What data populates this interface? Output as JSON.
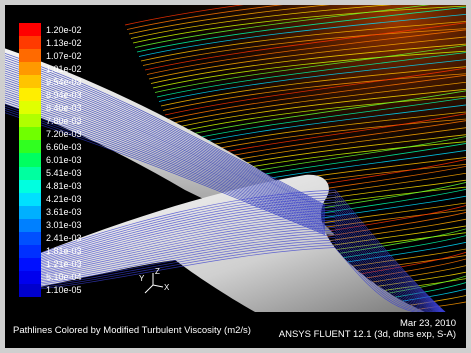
{
  "colorbar": {
    "labels": [
      "1.20e-02",
      "1.13e-02",
      "1.07e-02",
      "1.01e-02",
      "9.54e-03",
      "8.94e-03",
      "8.40e-03",
      "7.80e-03",
      "7.20e-03",
      "6.60e-03",
      "6.01e-03",
      "5.41e-03",
      "4.81e-03",
      "4.21e-03",
      "3.61e-03",
      "3.01e-03",
      "2.41e-03",
      "1.81e-03",
      "1.21e-03",
      "5.10e-04",
      "1.10e-05"
    ]
  },
  "footer": {
    "caption": "Pathlines Colored by Modified Turbulent Viscosity (m2/s)",
    "date": "Mar 23, 2010",
    "solver": "ANSYS FLUENT 12.1 (3d, dbns exp, S-A)"
  },
  "axes": {
    "y": "Y",
    "z": "Z",
    "x": "X"
  }
}
